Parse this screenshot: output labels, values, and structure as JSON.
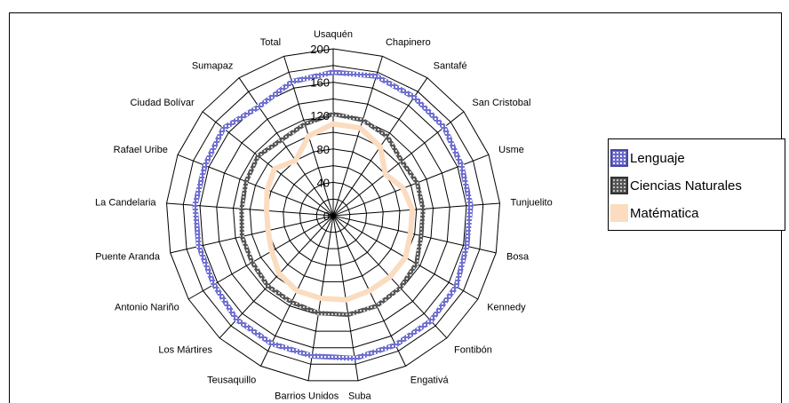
{
  "chart_data": {
    "type": "radar",
    "categories": [
      "Usaquén",
      "Chapinero",
      "Santafé",
      "San Cristobal",
      "Usme",
      "Tunjuelito",
      "Bosa",
      "Kennedy",
      "Fontibón",
      "Engativá",
      "Suba",
      "Barrios Unidos",
      "Teusaquillo",
      "Los Mártires",
      "Antonio Nariño",
      "Puente Aranda",
      "La Candelaria",
      "Rafael Uribe",
      "Ciudad Bolívar",
      "Sumapaz",
      "Total"
    ],
    "series": [
      {
        "name": "Lenguaje",
        "color": "#6B6BC9",
        "values": [
          172,
          175,
          172,
          170,
          165,
          165,
          164,
          170,
          172,
          172,
          173,
          170,
          170,
          170,
          165,
          165,
          166,
          165,
          168,
          158,
          168
        ]
      },
      {
        "name": "Ciencias Naturales",
        "color": "#555555",
        "values": [
          122,
          120,
          115,
          105,
          108,
          108,
          108,
          115,
          118,
          120,
          120,
          118,
          115,
          115,
          112,
          112,
          110,
          112,
          115,
          110,
          115
        ]
      },
      {
        "name": "Matématica",
        "color": "#FBDCC0",
        "values": [
          110,
          110,
          100,
          80,
          90,
          95,
          95,
          100,
          100,
          100,
          102,
          100,
          100,
          95,
          85,
          80,
          80,
          85,
          90,
          80,
          100
        ]
      }
    ],
    "radial_ticks": [
      0,
      40,
      80,
      120,
      160,
      200
    ],
    "rmax": 200,
    "grid": true,
    "legend_position": "right"
  }
}
